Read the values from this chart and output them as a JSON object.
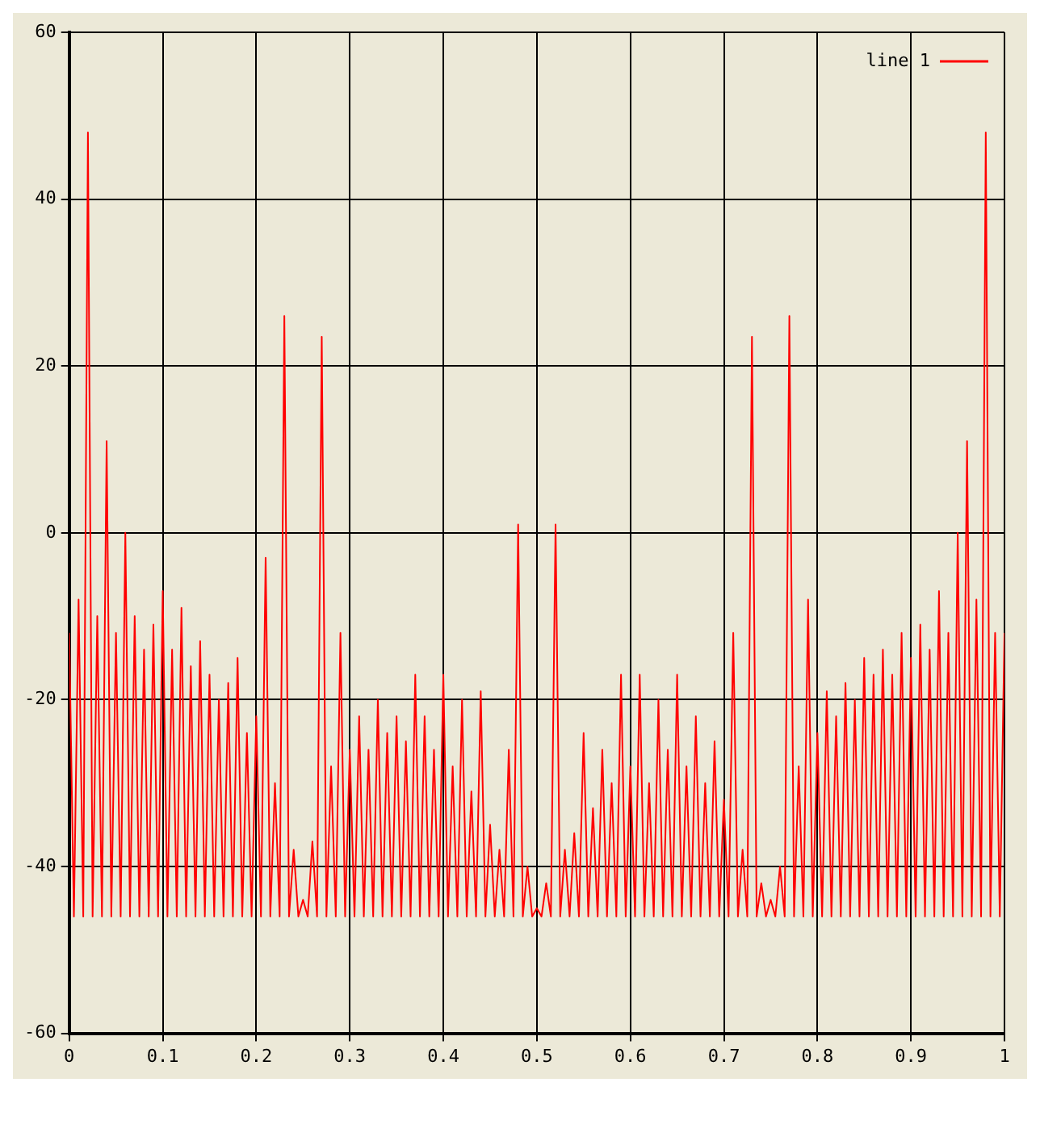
{
  "chart_data": {
    "type": "line",
    "series": [
      {
        "name": "line 1",
        "color": "#ff0000",
        "x": [
          0,
          0.005,
          0.01,
          0.015,
          0.02,
          0.025,
          0.03,
          0.035,
          0.04,
          0.045,
          0.05,
          0.055,
          0.06,
          0.065,
          0.07,
          0.075,
          0.08,
          0.085,
          0.09,
          0.095,
          0.1,
          0.105,
          0.11,
          0.115,
          0.12,
          0.125,
          0.13,
          0.135,
          0.14,
          0.145,
          0.15,
          0.155,
          0.16,
          0.165,
          0.17,
          0.175,
          0.18,
          0.185,
          0.19,
          0.195,
          0.2,
          0.205,
          0.21,
          0.215,
          0.22,
          0.225,
          0.23,
          0.235,
          0.24,
          0.245,
          0.25,
          0.255,
          0.26,
          0.265,
          0.27,
          0.275,
          0.28,
          0.285,
          0.29,
          0.295,
          0.3,
          0.305,
          0.31,
          0.315,
          0.32,
          0.325,
          0.33,
          0.335,
          0.34,
          0.345,
          0.35,
          0.355,
          0.36,
          0.365,
          0.37,
          0.375,
          0.38,
          0.385,
          0.39,
          0.395,
          0.4,
          0.405,
          0.41,
          0.415,
          0.42,
          0.425,
          0.43,
          0.435,
          0.44,
          0.445,
          0.45,
          0.455,
          0.46,
          0.465,
          0.47,
          0.475,
          0.48,
          0.485,
          0.49,
          0.495,
          0.5,
          0.505,
          0.51,
          0.515,
          0.52,
          0.525,
          0.53,
          0.535,
          0.54,
          0.545,
          0.55,
          0.555,
          0.56,
          0.565,
          0.57,
          0.575,
          0.58,
          0.585,
          0.59,
          0.595,
          0.6,
          0.605,
          0.61,
          0.615,
          0.62,
          0.625,
          0.63,
          0.635,
          0.64,
          0.645,
          0.65,
          0.655,
          0.66,
          0.665,
          0.67,
          0.675,
          0.68,
          0.685,
          0.69,
          0.695,
          0.7,
          0.705,
          0.71,
          0.715,
          0.72,
          0.725,
          0.73,
          0.735,
          0.74,
          0.745,
          0.75,
          0.755,
          0.76,
          0.765,
          0.77,
          0.775,
          0.78,
          0.785,
          0.79,
          0.795,
          0.8,
          0.805,
          0.81,
          0.815,
          0.82,
          0.825,
          0.83,
          0.835,
          0.84,
          0.845,
          0.85,
          0.855,
          0.86,
          0.865,
          0.87,
          0.875,
          0.88,
          0.885,
          0.89,
          0.895,
          0.9,
          0.905,
          0.91,
          0.915,
          0.92,
          0.925,
          0.93,
          0.935,
          0.94,
          0.945,
          0.95,
          0.955,
          0.96,
          0.965,
          0.97,
          0.975,
          0.98,
          0.985,
          0.99,
          0.995,
          1
        ],
        "values": [
          -12,
          -46,
          -8,
          -46,
          48,
          -46,
          -10,
          -46,
          11,
          -46,
          -12,
          -46,
          0,
          -46,
          -10,
          -46,
          -14,
          -46,
          -11,
          -46,
          -7,
          -46,
          -14,
          -46,
          -9,
          -46,
          -16,
          -46,
          -13,
          -46,
          -17,
          -46,
          -20,
          -46,
          -18,
          -46,
          -15,
          -46,
          -24,
          -46,
          -22,
          -46,
          -3,
          -46,
          -30,
          -46,
          26,
          -46,
          -38,
          -46,
          -44,
          -46,
          -37,
          -46,
          23.5,
          -46,
          -28,
          -46,
          -12,
          -46,
          -26,
          -46,
          -22,
          -46,
          -26,
          -46,
          -20,
          -46,
          -24,
          -46,
          -22,
          -46,
          -25,
          -46,
          -17,
          -46,
          -22,
          -46,
          -26,
          -46,
          -17,
          -46,
          -28,
          -46,
          -20,
          -46,
          -31,
          -46,
          -19,
          -46,
          -35,
          -46,
          -38,
          -46,
          -26,
          -46,
          1,
          -46,
          -40,
          -46,
          -45,
          -46,
          -42,
          -46,
          1,
          -46,
          -38,
          -46,
          -36,
          -46,
          -24,
          -46,
          -33,
          -46,
          -26,
          -46,
          -30,
          -46,
          -17,
          -46,
          -28,
          -46,
          -17,
          -46,
          -30,
          -46,
          -20,
          -46,
          -26,
          -46,
          -17,
          -46,
          -28,
          -46,
          -22,
          -46,
          -30,
          -46,
          -25,
          -46,
          -32,
          -46,
          -12,
          -46,
          -38,
          -46,
          23.5,
          -46,
          -42,
          -46,
          -44,
          -46,
          -40,
          -46,
          26,
          -46,
          -28,
          -46,
          -8,
          -46,
          -24,
          -46,
          -19,
          -46,
          -22,
          -46,
          -18,
          -46,
          -20,
          -46,
          -15,
          -46,
          -17,
          -46,
          -14,
          -46,
          -17,
          -46,
          -12,
          -46,
          -15,
          -46,
          -11,
          -46,
          -14,
          -46,
          -7,
          -46,
          -12,
          -46,
          0,
          -46,
          11,
          -46,
          -8,
          -46,
          48,
          -46,
          -12,
          -46,
          -12
        ]
      }
    ],
    "xlim": [
      0,
      1
    ],
    "xticks": [
      0,
      0.1,
      0.2,
      0.3,
      0.4,
      0.5,
      0.6,
      0.7,
      0.8,
      0.9,
      1
    ],
    "ylim": [
      -60,
      60
    ],
    "yticks": [
      -60,
      -40,
      -20,
      0,
      20,
      40,
      60
    ],
    "grid": true,
    "legend": "top right",
    "marker": "none",
    "line_style": "solid"
  }
}
